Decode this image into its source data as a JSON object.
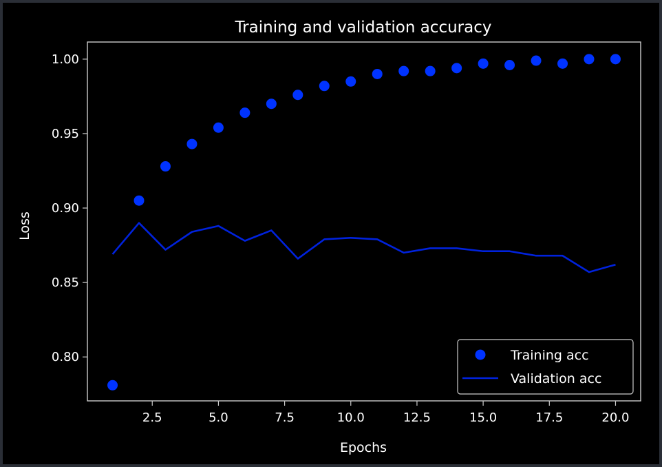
{
  "chart_data": {
    "type": "scatter+line",
    "title": "Training and validation accuracy",
    "xlabel": "Epochs",
    "ylabel": "Loss",
    "xlim": [
      0.05,
      20.95
    ],
    "ylim": [
      0.7705,
      1.0115
    ],
    "xticks": [
      2.5,
      5.0,
      7.5,
      10.0,
      12.5,
      15.0,
      17.5,
      20.0
    ],
    "xtick_labels": [
      "2.5",
      "5.0",
      "7.5",
      "10.0",
      "12.5",
      "15.0",
      "17.5",
      "20.0"
    ],
    "yticks": [
      0.8,
      0.85,
      0.9,
      0.95,
      1.0
    ],
    "ytick_labels": [
      "0.80",
      "0.85",
      "0.90",
      "0.95",
      "1.00"
    ],
    "grid": false,
    "legend_position": "lower-right",
    "x": [
      1,
      2,
      3,
      4,
      5,
      6,
      7,
      8,
      9,
      10,
      11,
      12,
      13,
      14,
      15,
      16,
      17,
      18,
      19,
      20
    ],
    "series": [
      {
        "name": "Training acc",
        "style": "dots",
        "color": "#0033ff",
        "values": [
          0.781,
          0.905,
          0.928,
          0.943,
          0.954,
          0.964,
          0.97,
          0.976,
          0.982,
          0.985,
          0.99,
          0.992,
          0.992,
          0.994,
          0.997,
          0.996,
          0.999,
          0.997,
          1.0,
          1.0
        ]
      },
      {
        "name": "Validation acc",
        "style": "line",
        "color": "#0022dd",
        "values": [
          0.869,
          0.89,
          0.872,
          0.884,
          0.888,
          0.878,
          0.885,
          0.866,
          0.879,
          0.88,
          0.879,
          0.87,
          0.873,
          0.873,
          0.871,
          0.871,
          0.868,
          0.868,
          0.857,
          0.862
        ]
      }
    ]
  },
  "colors": {
    "background": "#000000",
    "outer": "#2a2e36",
    "foreground": "#ffffff",
    "axes": "#cccccc"
  }
}
